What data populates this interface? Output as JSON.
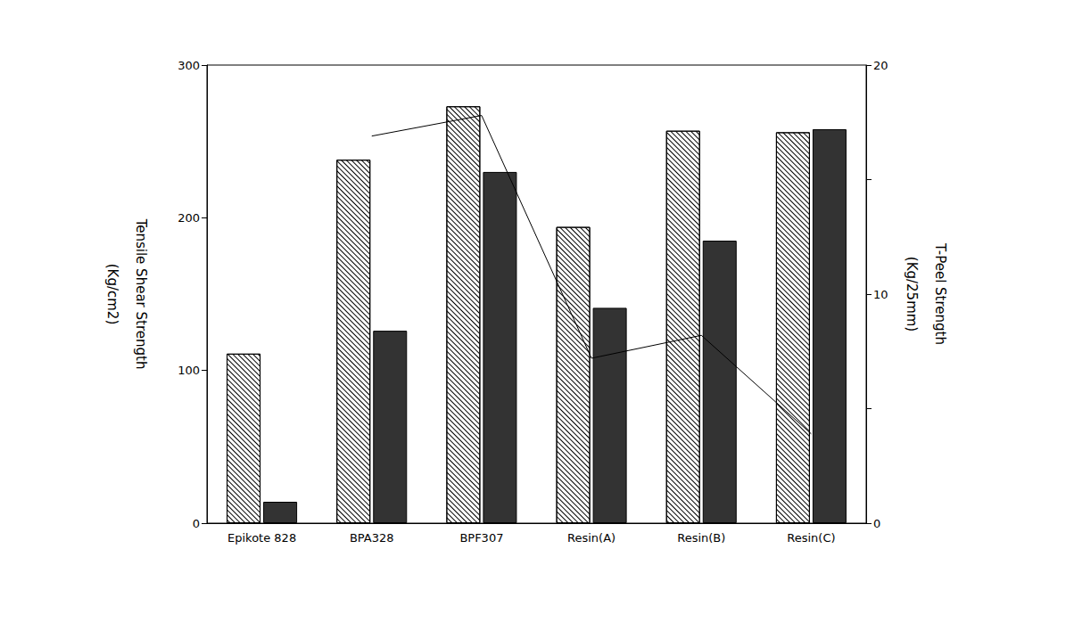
{
  "chart_data": {
    "type": "bar",
    "categories": [
      "Epikote 828",
      "BPA328",
      "BPF307",
      "Resin(A)",
      "Resin(B)",
      "Resin(C)"
    ],
    "y_label": "Tensile Shear Strength\n(Kg/cm2)",
    "y2_label": "T-Peel Strength\n(Kg/25mm)",
    "ylim": [
      0,
      300
    ],
    "yticks": [
      0,
      100,
      200,
      300
    ],
    "y2lim": [
      0,
      20
    ],
    "y2ticks": [
      0,
      10,
      20
    ],
    "grid": false,
    "series": [
      {
        "type": "bar",
        "color": "#ffffff",
        "marker": "hatched",
        "values": [
          111,
          238,
          273,
          194,
          257,
          256
        ]
      },
      {
        "type": "bar",
        "color": "#333333",
        "values": [
          14,
          126,
          230,
          141,
          185,
          258
        ]
      },
      {
        "type": "line",
        "color": "#000000",
        "axis": "y2",
        "values": [
          null,
          16.9,
          17.8,
          7.2,
          8.2,
          3.9
        ]
      }
    ]
  }
}
